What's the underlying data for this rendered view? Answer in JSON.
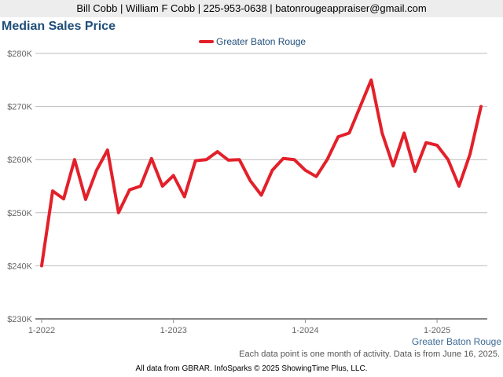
{
  "header": {
    "contact": "Bill Cobb | William F Cobb | 225-953-0638 | batonrougeappraiser@gmail.com"
  },
  "chart_data": {
    "type": "line",
    "title": "Median Sales Price",
    "xlabel": "",
    "ylabel": "",
    "ylim": [
      230000,
      280000
    ],
    "y_ticks": [
      230000,
      240000,
      250000,
      260000,
      270000,
      280000
    ],
    "y_tick_labels": [
      "$230K",
      "$240K",
      "$250K",
      "$260K",
      "$270K",
      "$280K"
    ],
    "x_tick_labels": [
      "1-2022",
      "1-2023",
      "1-2024",
      "1-2025"
    ],
    "x_tick_months": [
      "2022-01",
      "2023-01",
      "2024-01",
      "2025-01"
    ],
    "grid": true,
    "legend_position": "top-center",
    "x": [
      "2022-01",
      "2022-02",
      "2022-03",
      "2022-04",
      "2022-05",
      "2022-06",
      "2022-07",
      "2022-08",
      "2022-09",
      "2022-10",
      "2022-11",
      "2022-12",
      "2023-01",
      "2023-02",
      "2023-03",
      "2023-04",
      "2023-05",
      "2023-06",
      "2023-07",
      "2023-08",
      "2023-09",
      "2023-10",
      "2023-11",
      "2023-12",
      "2024-01",
      "2024-02",
      "2024-03",
      "2024-04",
      "2024-05",
      "2024-06",
      "2024-07",
      "2024-08",
      "2024-09",
      "2024-10",
      "2024-11",
      "2024-12",
      "2025-01",
      "2025-02",
      "2025-03",
      "2025-04",
      "2025-05"
    ],
    "series": [
      {
        "name": "Greater Baton Rouge",
        "color": "#e3202a",
        "values": [
          240000,
          254100,
          252600,
          260000,
          252500,
          258000,
          261800,
          250000,
          254300,
          255000,
          260200,
          255000,
          257000,
          253000,
          259800,
          260000,
          261500,
          259900,
          260000,
          256000,
          253300,
          258000,
          260200,
          260000,
          258000,
          256800,
          260000,
          264300,
          265000,
          270000,
          275000,
          265000,
          258800,
          265000,
          257800,
          263200,
          262700,
          260000,
          255000,
          261000,
          270000
        ]
      }
    ],
    "end_label": "Greater Baton Rouge"
  },
  "footer": {
    "note": "Each data point is one month of activity. Data is from June 16, 2025.",
    "credit": "All data from GBRAR. InfoSparks © 2025 ShowingTime Plus, LLC."
  }
}
